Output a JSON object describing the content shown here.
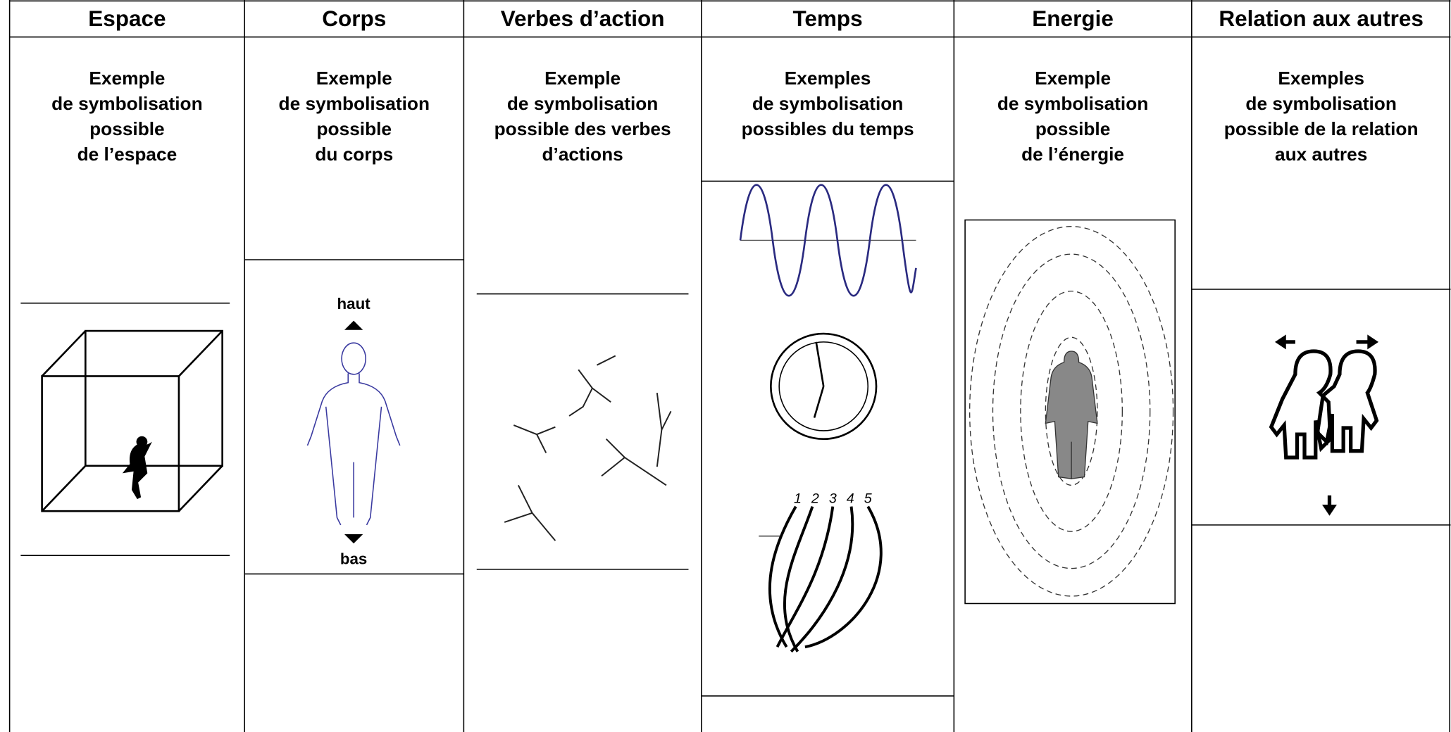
{
  "columns": [
    {
      "header": "Espace",
      "caption": [
        "Exemple",
        "de symbolisation",
        "possible",
        "de l’espace"
      ]
    },
    {
      "header": "Corps",
      "caption": [
        "Exemple",
        "de symbolisation",
        "possible",
        "du corps"
      ],
      "labels": [
        "haut",
        "bas"
      ]
    },
    {
      "header": "Verbes d’action",
      "caption": [
        "Exemple",
        "de symbolisation",
        "possible des verbes",
        "d’actions"
      ]
    },
    {
      "header": "Temps",
      "caption": [
        "Exemples",
        "de symbolisation",
        "possibles du temps"
      ],
      "figures": [
        "1",
        "2",
        "3",
        "4",
        "5"
      ]
    },
    {
      "header": "Energie",
      "caption": [
        "Exemple",
        "de symbolisation",
        "possible",
        "de l’énergie"
      ]
    },
    {
      "header": "Relation aux autres",
      "caption": [
        "Exemples",
        "de symbolisation",
        "possible de la relation",
        "aux autres"
      ]
    }
  ]
}
